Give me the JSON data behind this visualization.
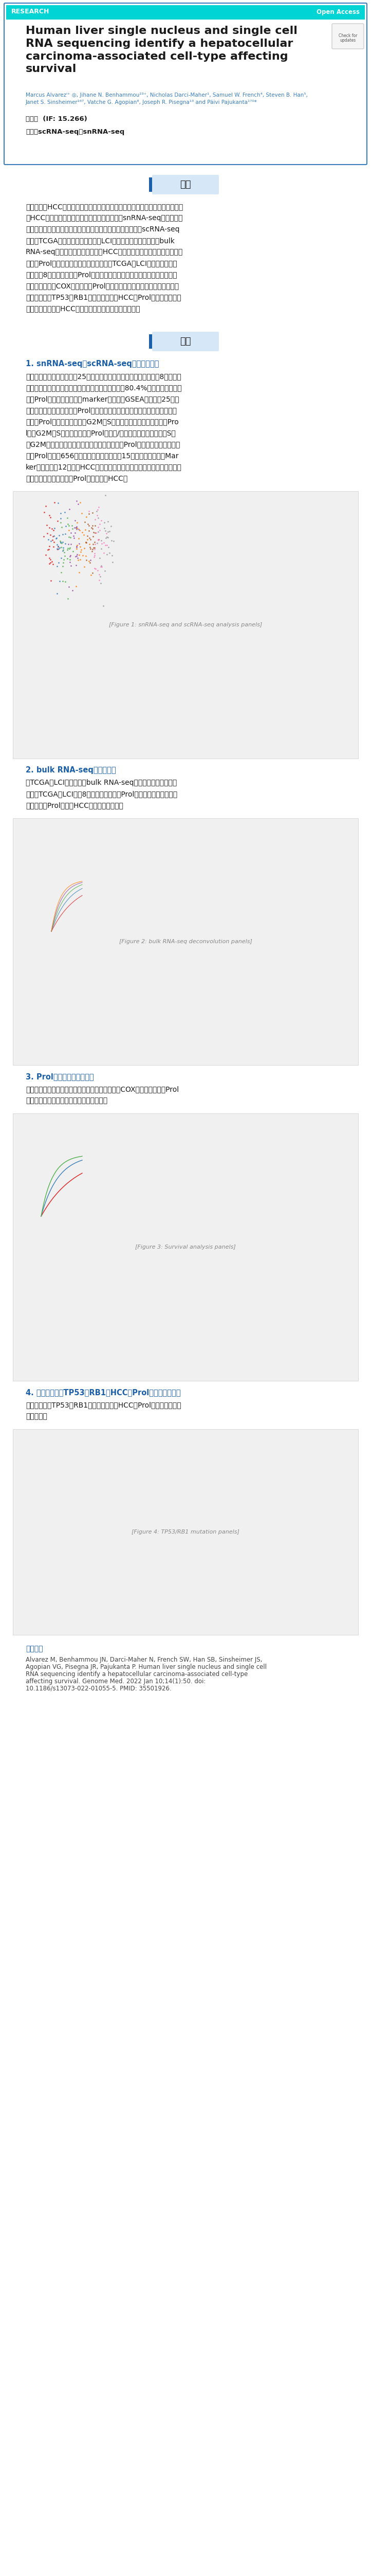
{
  "title_en": "Human liver single nucleus and single cell\nRNA sequencing identify a hepatocellular\ncarcinoma-associated cell-type affecting\nsurvival",
  "badge_research": "RESEARCH",
  "badge_open": "Open Access",
  "authors": "Marcus Alvarezⁱ⁺ ◎, Jihane N. Benhammou²³⁺, Nicholas Darci-Maher¹, Samuel W. French⁴, Steven B. Han⁵,\nJanet S. Sinsheimer¹⁶⁷, Vatche G. Agopian⁸, Joseph R. Pisegna¹³ and Päivi Pajukanta¹⁷⁰*",
  "journal_line": "期刚：  (IF: 15.266)",
  "tech_line": "技术：scRNA-seq、snRNA-seq",
  "section_guide": "导读",
  "guide_text": "肝细胞癌（HCC）是一种常见的原发性肝癌，总生存率低。将非酒精性脂肪肝相关HCC患者的肝癌肿瘼和癌旁组织中生成的肝脏snRNA-seq数据、包括病毒和非病毒来源的癌组织、癌旁组织和正常肝脏样本的肝脏scRNA-seq数据和TCGA数据库和肝癌研究所（LCI）的癌组织和癌旁组织的bulk RNA-seq数据进行联系分析来寻找HCC中的细胞类型差异。联合分析发现增殖性Prol细胞在肿瘦中显著富集，然后对TCGA和LCI的数据解卷积，发现只有8种细胞类型只有Prol显著增加，为了确定该细胞类型对生存预后的临床意义，通过COX回归发现高Prol细胞类型占比与较差的生存结果相关。肿瘦抑制基因TP53和RB1的体细胞突变与HCC中Prol细胞类型的增加有关。为深入了解HCC相互依赖的生物学机制提供依据。",
  "section_result": "结果",
  "result_sub1": "1. snRNA-seq和scRNA-seq数据整合分析",
  "result_text1": "综合数据进行聚类，鉴定出25个细胞亚群，再根据谱系将这些划分为8个主要细胞类型。在肿瘦样本中一个新的细胞类型显著富集（80.4%），将其命名为增殖（Prol）细胞亚型。基于marker基因进行GSEA分析并对25个细胞亚群进行功能注释，发现Prol的功能可能与生长和细胞分裂有关。为了进一步研究Prol的增殖能力，根据G2M和S细胞周期基因的平均表达量对Prol进行G2M和S模块评分。来自Prol的细胞/细胞核显示出显著较高的S期和G2M期模块评分。较高的细胞周期评分意味着Prol由活跃分裂的细胞组成。从Prol细胞的656个差异表达基因中筛选了15个差异倍数最高的Marker基因。其中12个曾在HCC发病机制中被证实或与该病的临床特征相关。单细胞水平数据分析显示Prol细胞类型与HCC相",
  "fig1_placeholder": "[Figure 1: snRNA-seq and scRNA-seq analysis panels]",
  "result_sub2": "2. bulk RNA-seq数据解卷积",
  "result_text2": "对TCGA和LCI数据集中的bulk RNA-seq数据进行解卷积分析。发现在TCGA和LCI中，8种细胞类型中只有Prol细胞类型显著增加，进一步证实了Prol细胞在HCC中的忌应主要性。",
  "fig2_placeholder": "[Figure 2: bulk RNA-seq deconvolution panels]",
  "result_sub3": "3. Prol细胞类型与生存分析",
  "result_text3": "为了确定该细胞类型对生存预后的临床意义，通过COX回归分析发现高Prol细胞类型占比与较差的生存结果显著相关。",
  "fig3_placeholder": "[Figure 3: Survival analysis panels]",
  "result_sub4": "4. 肿瘦抑制基因TP53和RB1与HCC中Prol细胞增加的关系",
  "result_text4": "肿瘦抑制基因TP53和RB1的体细胞突变与HCC中Prol细胞类型的增加显著相关。",
  "fig4_placeholder": "[Figure 4: TP53/RB1 mutation panels]",
  "conclusion_title": "参考文献",
  "conclusion_text": "Alvarez M, Benhammou JN, Darci-Maher N, French SW, Han SB, Sinsheimer JS, Agopian VG, Pisegna JR, Pajukanta P. Human liver single nucleus and single cell RNA sequencing identify a hepatocellular carcinoma-associated cell-type affecting survival. Genome Med. 2022 Jan 10;14(1):50. doi: 10.1186/s13073-022-01055-5. PMID: 35501926.",
  "header_bg": "#00d4d4",
  "border_color": "#3a7ebf",
  "section_marker_color": "#1a5fa8",
  "section_bg_color": "#d6e8f7",
  "link_color": "#3a7ebf",
  "blue_title_color": "#1a5fa8",
  "body_text_color": "#1a1a1a",
  "fig_image_color": "#e8e8e8"
}
